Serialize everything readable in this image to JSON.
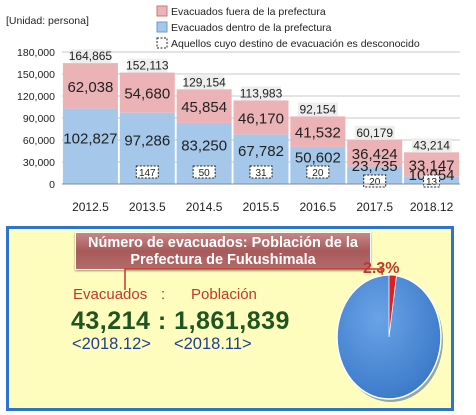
{
  "chart_data": {
    "type": "bar",
    "stacked": true,
    "unit_label": "[Unidad: persona]",
    "categories": [
      "2012.5",
      "2013.5",
      "2014.5",
      "2015.5",
      "2016.5",
      "2017.5",
      "2018.12"
    ],
    "series": [
      {
        "name": "Evacuados dentro de la prefectura",
        "color": "#a4c7ea",
        "values": [
          102827,
          97286,
          83250,
          67782,
          50602,
          23735,
          10054
        ]
      },
      {
        "name": "Evacuados fuera de la prefectura",
        "color": "#ecb3b7",
        "values": [
          62038,
          54680,
          45854,
          46170,
          41532,
          36424,
          33147
        ]
      },
      {
        "name": "Aquellos cuyo destino de evacuación es desconocido",
        "color": "#ffffff",
        "values": [
          null,
          147,
          50,
          31,
          20,
          20,
          13
        ]
      }
    ],
    "totals": [
      "164,865",
      "152,113",
      "129,154",
      "113,983",
      "92,154",
      "60,179",
      "43,214"
    ],
    "inside_labels": [
      "102,827",
      "97,286",
      "83,250",
      "67,782",
      "50,602",
      "23,735",
      "10,054"
    ],
    "outside_labels": [
      "62,038",
      "54,680",
      "45,854",
      "46,170",
      "41,532",
      "36,424",
      "33,147"
    ],
    "unknown_labels": [
      "",
      "147",
      "50",
      "31",
      "20",
      "20",
      "13"
    ],
    "yticks": [
      0,
      30000,
      60000,
      90000,
      120000,
      150000,
      180000
    ],
    "ytick_labels": [
      "0",
      "30,000",
      "60,000",
      "90,000",
      "120,000",
      "150,000",
      "180,000"
    ],
    "ylim": [
      0,
      180000
    ],
    "legend_position": "top"
  },
  "colors": {
    "inside": "#a4c7ea",
    "outside": "#ecb3b7",
    "panel_bg": "#fffdbe",
    "panel_border": "#2e75c9",
    "pie_main": "#3a78c8",
    "pie_slice": "#e02020"
  },
  "summary": {
    "title_line1": "Número de evacuados: Población de la",
    "title_line2": "Prefectura de Fukushimala",
    "evac_label": "Evacuados",
    "colon": ":",
    "pop_label": "Población",
    "ratio": "43,214 : 1,861,839",
    "evac_date": "<2018.12>",
    "pop_date": "<2018.11>",
    "percent": "2.3%",
    "percent_value": 0.023
  }
}
